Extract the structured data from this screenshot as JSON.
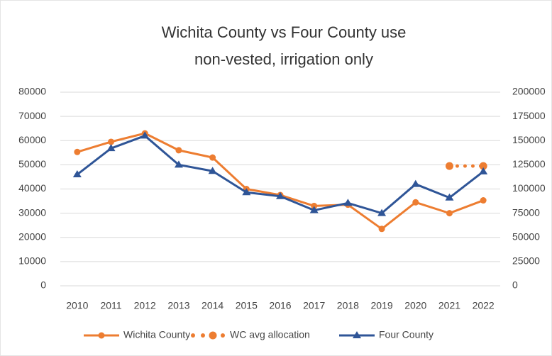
{
  "chart_data": {
    "type": "line",
    "title": [
      "Wichita County vs Four County use",
      "non-vested, irrigation only"
    ],
    "categories": [
      "2010",
      "2011",
      "2012",
      "2013",
      "2014",
      "2015",
      "2016",
      "2017",
      "2018",
      "2019",
      "2020",
      "2021",
      "2022"
    ],
    "series": [
      {
        "name": "Wichita County",
        "color": "#ed7d31",
        "axis": "y",
        "style": "line-circle",
        "values": [
          55300,
          59500,
          63000,
          56000,
          53000,
          40000,
          37500,
          33000,
          33500,
          23500,
          34500,
          30000,
          35300
        ]
      },
      {
        "name": "WC avg allocation",
        "color": "#ed7d31",
        "axis": "y",
        "style": "dots",
        "values": [
          null,
          null,
          null,
          null,
          null,
          null,
          null,
          null,
          null,
          null,
          null,
          49500,
          49500
        ]
      },
      {
        "name": "Four County",
        "color": "#2f5597",
        "axis": "y2",
        "style": "line-triangle",
        "values": [
          115000,
          142000,
          155000,
          125000,
          118500,
          96500,
          92500,
          78000,
          85500,
          75000,
          105000,
          91000,
          118000
        ]
      }
    ],
    "ylim": [
      0,
      80000
    ],
    "yticks": [
      0,
      10000,
      20000,
      30000,
      40000,
      50000,
      60000,
      70000,
      80000
    ],
    "y2lim": [
      0,
      200000
    ],
    "y2ticks": [
      0,
      25000,
      50000,
      75000,
      100000,
      125000,
      150000,
      175000,
      200000
    ],
    "grid": true,
    "legend": "bottom"
  }
}
